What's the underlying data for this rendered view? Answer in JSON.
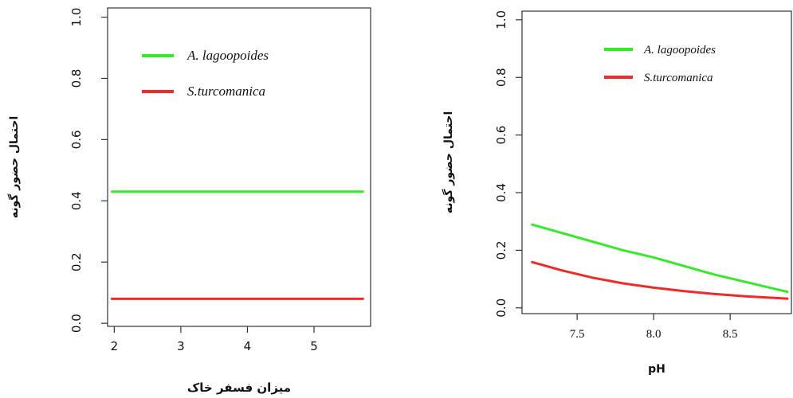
{
  "chart_data": [
    {
      "type": "line",
      "title": "",
      "xlabel": "میزان فسفر خاک",
      "ylabel": "احتمال حضور گونه",
      "xlim": [
        1.9,
        5.85
      ],
      "ylim": [
        -0.01,
        1.03
      ],
      "x_ticks": [
        2,
        3,
        4,
        5
      ],
      "x_tick_labels": [
        "2",
        "3",
        "4",
        "5"
      ],
      "y_ticks": [
        0.0,
        0.2,
        0.4,
        0.6,
        0.8,
        1.0
      ],
      "y_tick_labels": [
        "0.0",
        "0.2",
        "0.4",
        "0.6",
        "0.8",
        "1.0"
      ],
      "grid": false,
      "legend_position": "top-center",
      "series": [
        {
          "name": "A. lagoopoides",
          "color": "#38e82c",
          "x": [
            1.95,
            5.75
          ],
          "values": [
            0.43,
            0.43
          ]
        },
        {
          "name": "S.turcomanica",
          "color": "#ee2a2a",
          "x": [
            1.95,
            5.75
          ],
          "values": [
            0.08,
            0.08
          ]
        }
      ]
    },
    {
      "type": "line",
      "title": "",
      "xlabel": "pH",
      "ylabel": "احتمال حضور گونه",
      "xlim": [
        7.14,
        8.9
      ],
      "ylim": [
        -0.02,
        1.03
      ],
      "x_ticks": [
        7.5,
        8.0,
        8.5
      ],
      "x_tick_labels": [
        "7.5",
        "8.0",
        "8.5"
      ],
      "y_ticks": [
        0.0,
        0.2,
        0.4,
        0.6,
        0.8,
        1.0
      ],
      "y_tick_labels": [
        "0.0",
        "0.2",
        "0.4",
        "0.6",
        "0.8",
        "1.0"
      ],
      "grid": false,
      "legend_position": "top-center",
      "series": [
        {
          "name": "A. lagoopoides",
          "color": "#38e82c",
          "x": [
            7.2,
            7.4,
            7.6,
            7.8,
            8.0,
            8.2,
            8.4,
            8.6,
            8.88
          ],
          "values": [
            0.29,
            0.26,
            0.23,
            0.2,
            0.175,
            0.145,
            0.115,
            0.09,
            0.055
          ]
        },
        {
          "name": "S.turcomanica",
          "color": "#ee2a2a",
          "x": [
            7.2,
            7.4,
            7.6,
            7.8,
            8.0,
            8.2,
            8.4,
            8.6,
            8.88
          ],
          "values": [
            0.16,
            0.13,
            0.105,
            0.085,
            0.07,
            0.058,
            0.048,
            0.04,
            0.032
          ]
        }
      ]
    }
  ]
}
